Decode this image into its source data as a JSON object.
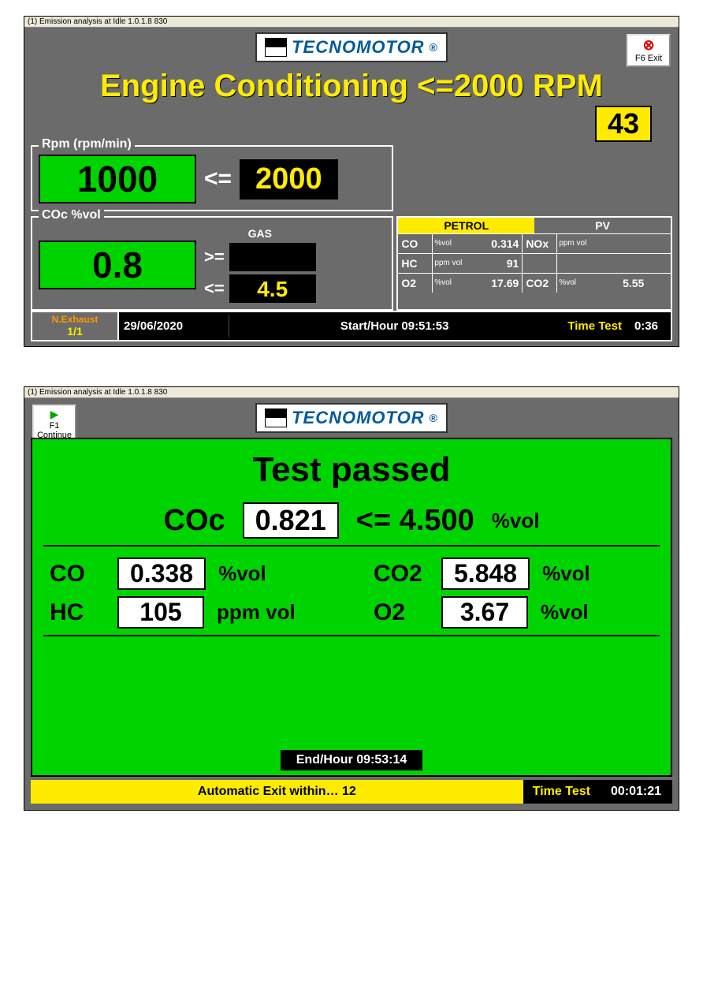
{
  "window_title": "(1) Emission analysis at Idle 1.0.1.8  830",
  "logo_text": "TECNOMOTOR",
  "buttons": {
    "exit": "F6 Exit",
    "continue": "F1\nContinue"
  },
  "screen1": {
    "heading": "Engine Conditioning <=2000 RPM",
    "count": "43",
    "rpm": {
      "label": "Rpm (rpm/min)",
      "value": "1000",
      "op": "<=",
      "limit": "2000"
    },
    "coc": {
      "label": "COc %vol",
      "value": "0.8",
      "gas_label": "GAS",
      "op_ge": ">=",
      "ge_val": "",
      "op_le": "<=",
      "le_val": "4.5"
    },
    "petrol": {
      "head1": "PETROL",
      "head2": "PV",
      "rows": [
        {
          "l1": "CO",
          "u1": "%vol",
          "v1": "0.314",
          "l2": "NOx",
          "u2": "ppm vol",
          "v2": ""
        },
        {
          "l1": "HC",
          "u1": "ppm vol",
          "v1": "91",
          "l2": "",
          "u2": "",
          "v2": ""
        },
        {
          "l1": "O2",
          "u1": "%vol",
          "v1": "17.69",
          "l2": "CO2",
          "u2": "%vol",
          "v2": "5.55"
        }
      ]
    },
    "status": {
      "nexhaust_label": "N.Exhaust",
      "nexhaust_value": "1/1",
      "date": "29/06/2020",
      "start_label": "Start/Hour 09:51:53",
      "time_test_label": "Time Test",
      "time_test_value": "0:36"
    }
  },
  "screen2": {
    "title": "Test passed",
    "coc": {
      "label": "COc",
      "value": "0.821",
      "limit": "<= 4.500",
      "unit": "%vol"
    },
    "rows_left": [
      {
        "label": "CO",
        "value": "0.338",
        "unit": "%vol"
      },
      {
        "label": "HC",
        "value": "105",
        "unit": "ppm vol"
      }
    ],
    "rows_right": [
      {
        "label": "CO2",
        "value": "5.848",
        "unit": "%vol"
      },
      {
        "label": "O2",
        "value": "3.67",
        "unit": "%vol"
      }
    ],
    "end_hour": "End/Hour 09:53:14",
    "auto_exit": "Automatic Exit within… 12",
    "time_test_label": "Time Test",
    "time_test_value": "00:01:21"
  }
}
